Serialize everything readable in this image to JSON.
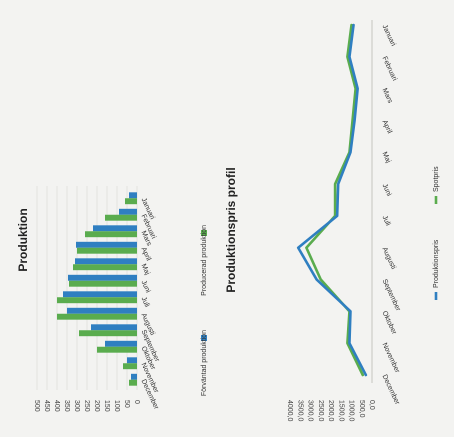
{
  "chart_data": [
    {
      "type": "bar",
      "title": "Produktion",
      "categories": [
        "Januari",
        "Februari",
        "Mars",
        "April",
        "Maj",
        "Juni",
        "Juli",
        "Augusti",
        "September",
        "Oktober",
        "November",
        "December"
      ],
      "series": [
        {
          "name": "Förväntad produktion",
          "color": "#2f7fc1",
          "values": [
            40,
            90,
            220,
            305,
            310,
            345,
            370,
            350,
            230,
            160,
            50,
            30
          ]
        },
        {
          "name": "Producerad produktion",
          "color": "#5aac4e",
          "values": [
            60,
            160,
            260,
            300,
            320,
            340,
            400,
            400,
            290,
            200,
            70,
            40
          ]
        }
      ],
      "ylim": [
        0,
        500
      ],
      "yticks": [
        "500",
        "450",
        "400",
        "350",
        "300",
        "250",
        "200",
        "150",
        "100",
        "50",
        "0"
      ],
      "legend": "bottom",
      "orientation": "rotated-90"
    },
    {
      "type": "line",
      "title": "Produktionspris profil",
      "categories": [
        "Januari",
        "Februari",
        "Mars",
        "April",
        "Maj",
        "Juni",
        "Juli",
        "Augusti",
        "September",
        "Oktober",
        "November",
        "December"
      ],
      "series": [
        {
          "name": "Produktionspris",
          "color": "#2f7fc1",
          "values": [
            900,
            1100,
            700,
            850,
            1050,
            1650,
            1700,
            3600,
            2700,
            1050,
            1100,
            300
          ]
        },
        {
          "name": "Spotpris",
          "color": "#5aac4e",
          "values": [
            1000,
            1200,
            800,
            950,
            1100,
            1800,
            1800,
            3200,
            2500,
            1100,
            1200,
            450
          ]
        }
      ],
      "ylim": [
        0,
        4000
      ],
      "yticks": [
        "4000,0",
        "3500,0",
        "3000,0",
        "2500,0",
        "2000,0",
        "1500,0",
        "1000,0",
        "500,0",
        "0,0"
      ],
      "legend": "bottom",
      "orientation": "rotated-90"
    }
  ]
}
